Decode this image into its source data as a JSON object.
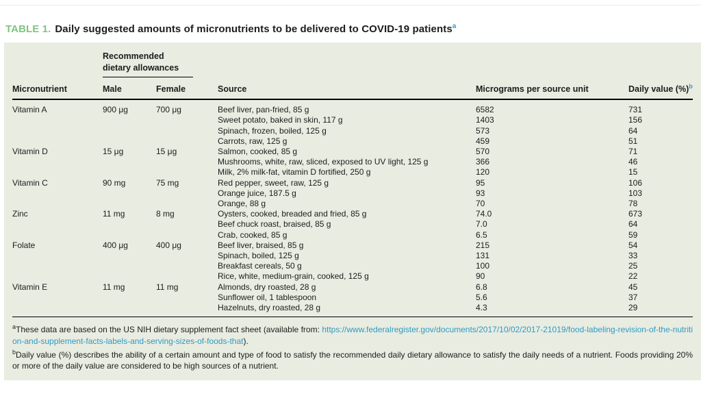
{
  "page": {
    "title_label": "TABLE 1.",
    "title_text": "Daily suggested amounts of micronutrients to be delivered to COVID-19 patients",
    "title_superscript": "a"
  },
  "table": {
    "group_header": "Recommended dietary allowances",
    "columns": {
      "micronutrient": "Micronutrient",
      "male": "Male",
      "female": "Female",
      "source": "Source",
      "micrograms": "Micrograms per source unit",
      "daily_value": "Daily value (%)",
      "daily_value_superscript": "b"
    },
    "rows": [
      {
        "micronutrient": "Vitamin A",
        "male": "900 μg",
        "female": "700 μg",
        "source": "Beef liver, pan-fried, 85 g",
        "micrograms": "6582",
        "daily_value": "731"
      },
      {
        "micronutrient": "",
        "male": "",
        "female": "",
        "source": "Sweet potato, baked in skin, 117 g",
        "micrograms": "1403",
        "daily_value": "156"
      },
      {
        "micronutrient": "",
        "male": "",
        "female": "",
        "source": "Spinach, frozen, boiled, 125 g",
        "micrograms": "573",
        "daily_value": "64"
      },
      {
        "micronutrient": "",
        "male": "",
        "female": "",
        "source": "Carrots, raw, 125 g",
        "micrograms": "459",
        "daily_value": "51"
      },
      {
        "micronutrient": "Vitamin D",
        "male": "15 μg",
        "female": "15 μg",
        "source": "Salmon, cooked, 85 g",
        "micrograms": "570",
        "daily_value": "71"
      },
      {
        "micronutrient": "",
        "male": "",
        "female": "",
        "source": "Mushrooms, white, raw, sliced, exposed to UV light, 125 g",
        "micrograms": "366",
        "daily_value": "46"
      },
      {
        "micronutrient": "",
        "male": "",
        "female": "",
        "source": "Milk, 2% milk-fat, vitamin D fortified, 250 g",
        "micrograms": "120",
        "daily_value": "15"
      },
      {
        "micronutrient": "Vitamin C",
        "male": "90 mg",
        "female": "75 mg",
        "source": "Red pepper, sweet, raw, 125 g",
        "micrograms": "95",
        "daily_value": "106"
      },
      {
        "micronutrient": "",
        "male": "",
        "female": "",
        "source": "Orange juice, 187.5 g",
        "micrograms": "93",
        "daily_value": "103"
      },
      {
        "micronutrient": "",
        "male": "",
        "female": "",
        "source": "Orange, 88 g",
        "micrograms": "70",
        "daily_value": "78"
      },
      {
        "micronutrient": "Zinc",
        "male": "11 mg",
        "female": "8 mg",
        "source": "Oysters, cooked, breaded and fried, 85 g",
        "micrograms": "74.0",
        "daily_value": "673"
      },
      {
        "micronutrient": "",
        "male": "",
        "female": "",
        "source": "Beef chuck roast, braised, 85 g",
        "micrograms": "7.0",
        "daily_value": "64"
      },
      {
        "micronutrient": "",
        "male": "",
        "female": "",
        "source": "Crab, cooked, 85 g",
        "micrograms": "6.5",
        "daily_value": "59"
      },
      {
        "micronutrient": "Folate",
        "male": "400 μg",
        "female": "400 μg",
        "source": "Beef liver, braised, 85 g",
        "micrograms": "215",
        "daily_value": "54"
      },
      {
        "micronutrient": "",
        "male": "",
        "female": "",
        "source": "Spinach, boiled, 125 g",
        "micrograms": "131",
        "daily_value": "33"
      },
      {
        "micronutrient": "",
        "male": "",
        "female": "",
        "source": "Breakfast cereals, 50 g",
        "micrograms": "100",
        "daily_value": "25"
      },
      {
        "micronutrient": "",
        "male": "",
        "female": "",
        "source": "Rice, white, medium-grain, cooked, 125 g",
        "micrograms": "90",
        "daily_value": "22"
      },
      {
        "micronutrient": "Vitamin E",
        "male": "11 mg",
        "female": "11 mg",
        "source": "Almonds, dry roasted, 28 g",
        "micrograms": "6.8",
        "daily_value": "45"
      },
      {
        "micronutrient": "",
        "male": "",
        "female": "",
        "source": "Sunflower oil, 1 tablespoon",
        "micrograms": "5.6",
        "daily_value": "37"
      },
      {
        "micronutrient": "",
        "male": "",
        "female": "",
        "source": "Hazelnuts, dry roasted, 28 g",
        "micrograms": "4.3",
        "daily_value": "29"
      }
    ]
  },
  "footnotes": {
    "a_marker": "a",
    "a_text": "These data are based on the US NIH dietary supplement fact sheet (available from: ",
    "a_link": "https://www.federalregister.gov/documents/2017/10/02/2017-21019/food-labeling-revision-of-the-nutrition-and-supplement-facts-labels-and-serving-sizes-of-foods-that",
    "a_suffix": ").",
    "b_marker": "b",
    "b_text": "Daily value (%) describes the ability of a certain amount and type of food to satisfy the recommended daily dietary allowance to satisfy the daily needs of a nutrient. Foods providing 20% or more of the daily value are considered to be high sources of a nutrient."
  },
  "colors": {
    "table_label_green": "#7dc67e",
    "link_teal": "#2e9ac4",
    "panel_background": "#e9ece1",
    "text": "#1c1c1c"
  }
}
